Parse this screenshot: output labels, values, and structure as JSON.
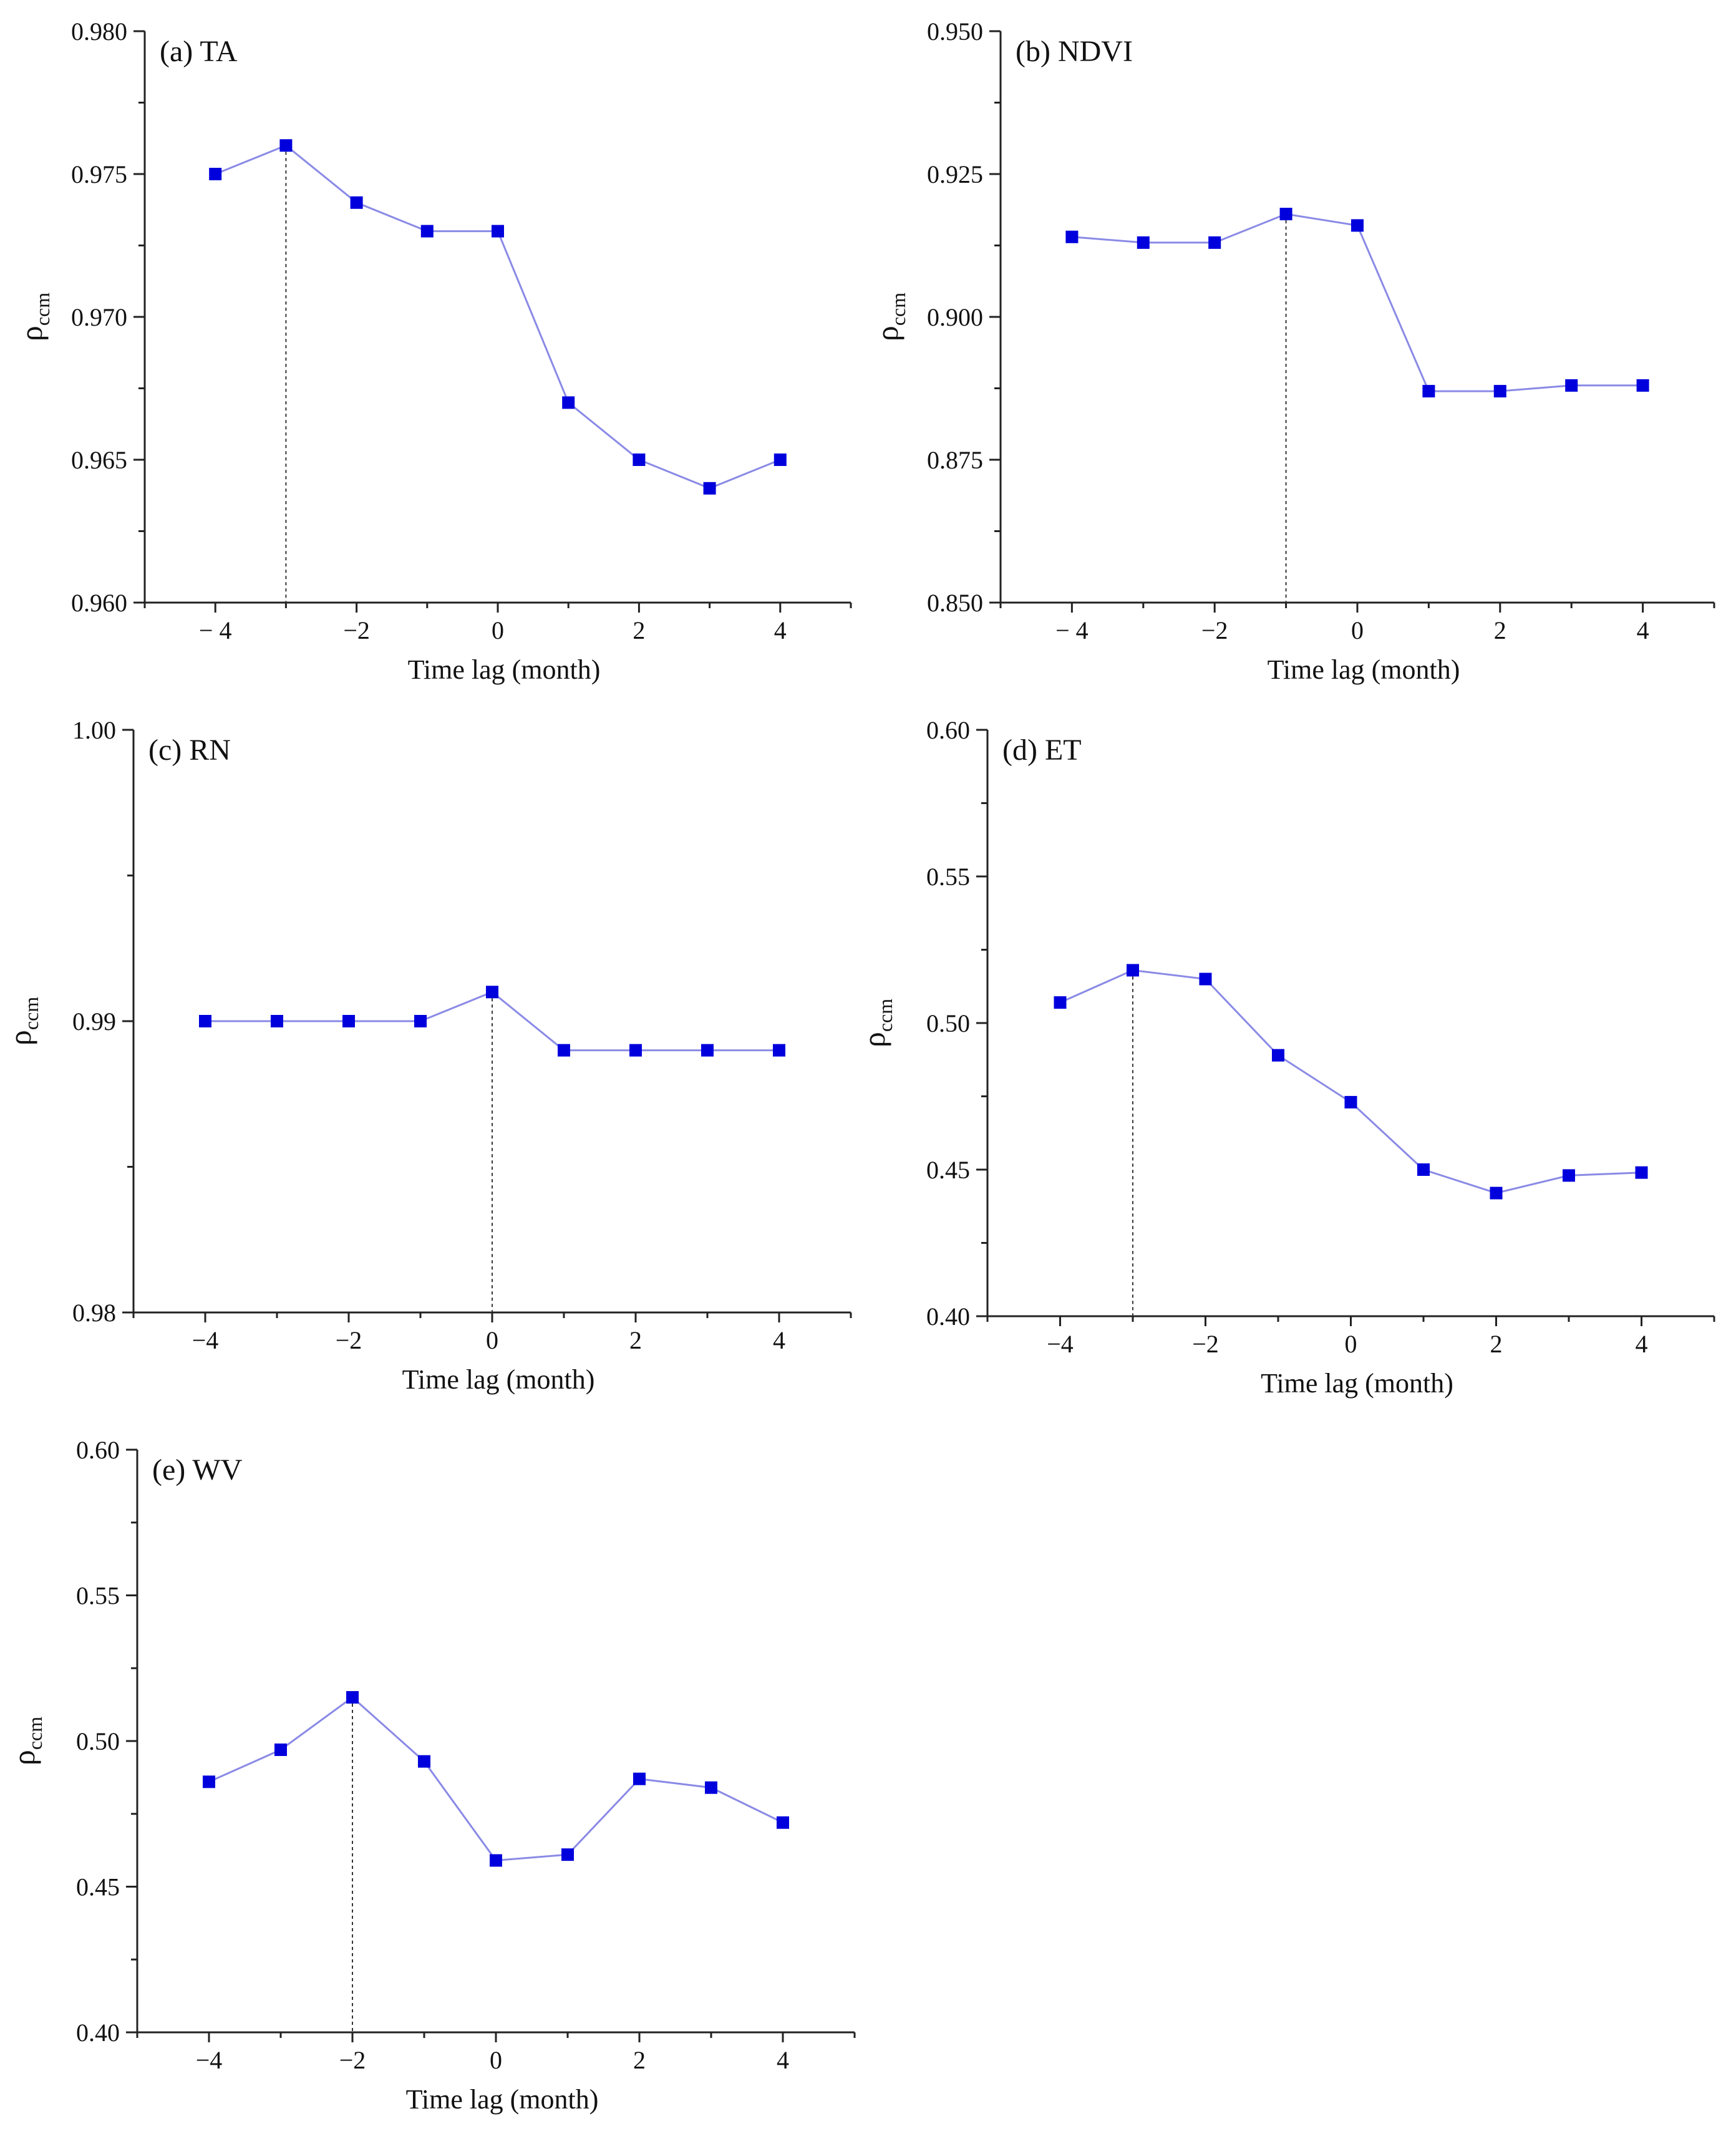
{
  "figure": {
    "style": {
      "line_color": "#8a8ae6",
      "marker_color": "#0000dd",
      "axis_color": "#222222"
    }
  },
  "chart_data": [
    {
      "id": "a",
      "type": "line",
      "title": "(a) TA",
      "xlabel": "Time lag (month)",
      "ylabel": "ρ",
      "ylabel_sub": "ccm",
      "x": [
        -4,
        -3,
        -2,
        -1,
        0,
        1,
        2,
        3,
        4
      ],
      "values": [
        0.975,
        0.976,
        0.974,
        0.973,
        0.973,
        0.967,
        0.965,
        0.964,
        0.965
      ],
      "xlim": [
        -5,
        5
      ],
      "ylim": [
        0.96,
        0.98
      ],
      "xticks": [
        -4,
        -2,
        0,
        2,
        4
      ],
      "xtick_labels": [
        "− 4",
        "−2",
        "0",
        "2",
        "4"
      ],
      "yticks": [
        0.96,
        0.965,
        0.97,
        0.975,
        0.98
      ],
      "ytick_labels": [
        "0.960",
        "0.965",
        "0.970",
        "0.975",
        "0.980"
      ],
      "peak_x": -3,
      "grid": false
    },
    {
      "id": "b",
      "type": "line",
      "title": "(b) NDVI",
      "xlabel": "Time lag (month)",
      "ylabel": "ρ",
      "ylabel_sub": "ccm",
      "x": [
        -4,
        -3,
        -2,
        -1,
        0,
        1,
        2,
        3,
        4
      ],
      "values": [
        0.914,
        0.913,
        0.913,
        0.918,
        0.916,
        0.887,
        0.887,
        0.888,
        0.888
      ],
      "xlim": [
        -5,
        5
      ],
      "ylim": [
        0.85,
        0.95
      ],
      "xticks": [
        -4,
        -2,
        0,
        2,
        4
      ],
      "xtick_labels": [
        "− 4",
        "−2",
        "0",
        "2",
        "4"
      ],
      "yticks": [
        0.85,
        0.875,
        0.9,
        0.925,
        0.95
      ],
      "ytick_labels": [
        "0.850",
        "0.875",
        "0.900",
        "0.925",
        "0.950"
      ],
      "peak_x": -1,
      "grid": false
    },
    {
      "id": "c",
      "type": "line",
      "title": "(c) RN",
      "xlabel": "Time lag (month)",
      "ylabel": "ρ",
      "ylabel_sub": "ccm",
      "x": [
        -4,
        -3,
        -2,
        -1,
        0,
        1,
        2,
        3,
        4
      ],
      "values": [
        0.99,
        0.99,
        0.99,
        0.99,
        0.991,
        0.989,
        0.989,
        0.989,
        0.989
      ],
      "xlim": [
        -5,
        5
      ],
      "ylim": [
        0.98,
        1.0
      ],
      "xticks": [
        -4,
        -2,
        0,
        2,
        4
      ],
      "xtick_labels": [
        "−4",
        "−2",
        "0",
        "2",
        "4"
      ],
      "yticks": [
        0.98,
        0.99,
        1.0
      ],
      "ytick_labels": [
        "0.98",
        "0.99",
        "1.00"
      ],
      "peak_x": 0,
      "grid": false
    },
    {
      "id": "d",
      "type": "line",
      "title": "(d) ET",
      "xlabel": "Time lag (month)",
      "ylabel": "ρ",
      "ylabel_sub": "ccm",
      "x": [
        -4,
        -3,
        -2,
        -1,
        0,
        1,
        2,
        3,
        4
      ],
      "values": [
        0.507,
        0.518,
        0.515,
        0.489,
        0.473,
        0.45,
        0.442,
        0.448,
        0.449
      ],
      "xlim": [
        -5,
        5
      ],
      "ylim": [
        0.4,
        0.6
      ],
      "xticks": [
        -4,
        -2,
        0,
        2,
        4
      ],
      "xtick_labels": [
        "−4",
        "−2",
        "0",
        "2",
        "4"
      ],
      "yticks": [
        0.4,
        0.45,
        0.5,
        0.55,
        0.6
      ],
      "ytick_labels": [
        "0.40",
        "0.45",
        "0.50",
        "0.55",
        "0.60"
      ],
      "peak_x": -3,
      "grid": false
    },
    {
      "id": "e",
      "type": "line",
      "title": "(e) WV",
      "xlabel": "Time lag (month)",
      "ylabel": "ρ",
      "ylabel_sub": "ccm",
      "x": [
        -4,
        -3,
        -2,
        -1,
        0,
        1,
        2,
        3,
        4
      ],
      "values": [
        0.486,
        0.497,
        0.515,
        0.493,
        0.459,
        0.461,
        0.487,
        0.484,
        0.472
      ],
      "xlim": [
        -5,
        5
      ],
      "ylim": [
        0.4,
        0.6
      ],
      "xticks": [
        -4,
        -2,
        0,
        2,
        4
      ],
      "xtick_labels": [
        "−4",
        "−2",
        "0",
        "2",
        "4"
      ],
      "yticks": [
        0.4,
        0.45,
        0.5,
        0.55,
        0.6
      ],
      "ytick_labels": [
        "0.40",
        "0.45",
        "0.50",
        "0.55",
        "0.60"
      ],
      "peak_x": -2,
      "grid": false
    }
  ]
}
